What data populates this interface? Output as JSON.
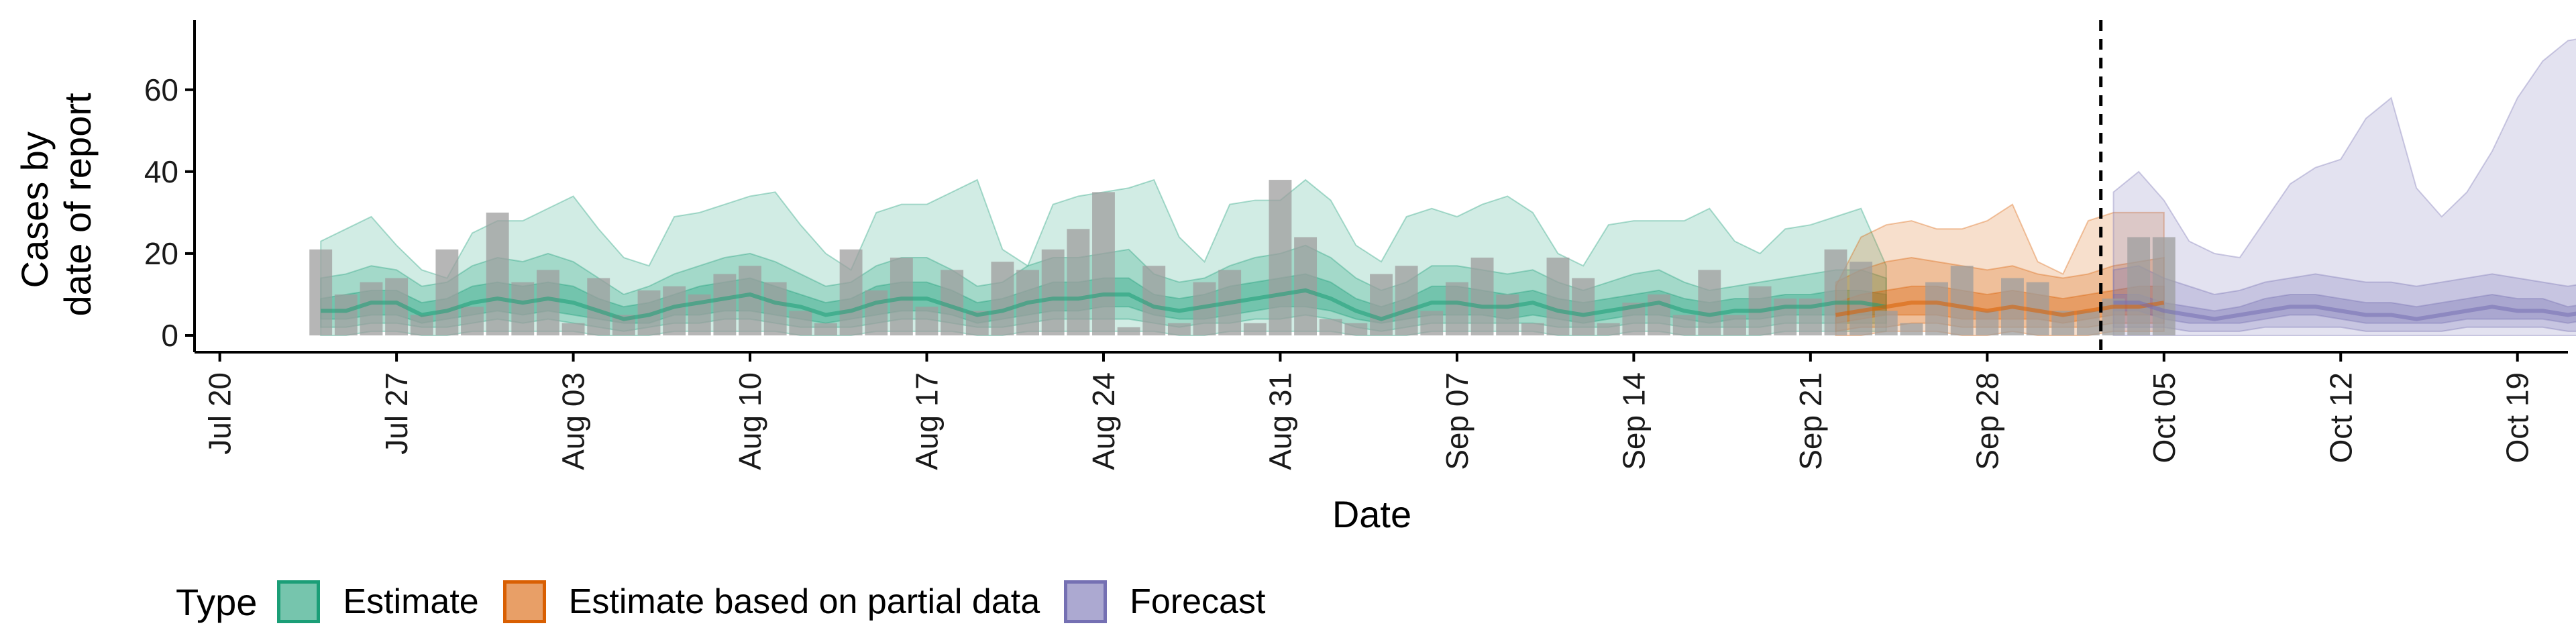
{
  "colors": {
    "estimate": "#1b9e77",
    "estimate_partial": "#d95f02",
    "forecast": "#7570b3",
    "bars": "#9e9e9e",
    "axis": "#000000"
  },
  "legend": {
    "title": "Type",
    "items": [
      {
        "label": "Estimate",
        "color": "#1b9e77"
      },
      {
        "label": "Estimate based on partial data",
        "color": "#d95f02"
      },
      {
        "label": "Forecast",
        "color": "#7570b3"
      }
    ]
  },
  "chart_data": {
    "type": "bar",
    "title": "",
    "xlabel": "Date",
    "ylabel": "Cases by\ndate of report",
    "x_range": [
      "2020-07-19",
      "2020-10-21"
    ],
    "ylim": [
      0,
      77
    ],
    "y_ticks": [
      0,
      20,
      40,
      60
    ],
    "x_ticks": [
      {
        "date": "2020-07-20",
        "label": "Jul 20"
      },
      {
        "date": "2020-07-27",
        "label": "Jul 27"
      },
      {
        "date": "2020-08-03",
        "label": "Aug 03"
      },
      {
        "date": "2020-08-10",
        "label": "Aug 10"
      },
      {
        "date": "2020-08-17",
        "label": "Aug 17"
      },
      {
        "date": "2020-08-24",
        "label": "Aug 24"
      },
      {
        "date": "2020-08-31",
        "label": "Aug 31"
      },
      {
        "date": "2020-09-07",
        "label": "Sep 07"
      },
      {
        "date": "2020-09-14",
        "label": "Sep 14"
      },
      {
        "date": "2020-09-21",
        "label": "Sep 21"
      },
      {
        "date": "2020-09-28",
        "label": "Sep 28"
      },
      {
        "date": "2020-10-05",
        "label": "Oct 05"
      },
      {
        "date": "2020-10-12",
        "label": "Oct 12"
      },
      {
        "date": "2020-10-19",
        "label": "Oct 19"
      }
    ],
    "forecast_start_marker": "2020-10-02",
    "grid": false,
    "legend_position": "bottom",
    "reported_cases": {
      "start_date": "2020-07-24",
      "values": [
        21,
        10,
        13,
        14,
        5,
        21,
        7,
        30,
        13,
        16,
        3,
        14,
        5,
        11,
        12,
        10,
        15,
        17,
        13,
        6,
        3,
        21,
        11,
        19,
        7,
        16,
        6,
        18,
        16,
        21,
        26,
        35,
        2,
        17,
        3,
        13,
        16,
        3,
        38,
        24,
        4,
        3,
        15,
        17,
        6,
        13,
        19,
        10,
        3,
        19,
        14,
        3,
        8,
        10,
        5,
        16,
        5,
        12,
        9,
        9,
        21,
        18,
        6,
        3,
        13,
        17,
        6,
        14,
        13,
        6,
        6,
        9,
        24,
        24
      ]
    },
    "series": [
      {
        "name": "Estimate",
        "start_date": "2020-07-24",
        "median": [
          6,
          6,
          8,
          8,
          5,
          6,
          8,
          9,
          8,
          9,
          8,
          6,
          4,
          5,
          7,
          8,
          9,
          10,
          8,
          7,
          5,
          6,
          8,
          9,
          9,
          7,
          5,
          6,
          8,
          9,
          9,
          10,
          10,
          7,
          6,
          7,
          8,
          9,
          10,
          11,
          9,
          6,
          4,
          6,
          8,
          8,
          7,
          7,
          8,
          6,
          5,
          6,
          7,
          8,
          6,
          5,
          6,
          6,
          7,
          7,
          8,
          8,
          7
        ],
        "inner_low": [
          4,
          4,
          5,
          5,
          3,
          4,
          5,
          6,
          5,
          6,
          5,
          4,
          3,
          3,
          5,
          5,
          6,
          6,
          5,
          4,
          3,
          4,
          5,
          6,
          6,
          5,
          3,
          4,
          5,
          6,
          6,
          7,
          7,
          5,
          4,
          4,
          5,
          6,
          7,
          7,
          6,
          4,
          3,
          4,
          5,
          5,
          5,
          4,
          5,
          4,
          3,
          4,
          5,
          5,
          4,
          3,
          4,
          4,
          5,
          5,
          5,
          5,
          5
        ],
        "inner_high": [
          9,
          10,
          11,
          11,
          8,
          9,
          12,
          13,
          12,
          13,
          12,
          9,
          7,
          8,
          10,
          12,
          13,
          14,
          12,
          10,
          8,
          9,
          12,
          13,
          13,
          11,
          8,
          9,
          11,
          13,
          13,
          14,
          14,
          10,
          9,
          10,
          12,
          13,
          14,
          15,
          13,
          9,
          7,
          9,
          12,
          12,
          11,
          10,
          11,
          9,
          8,
          9,
          10,
          11,
          9,
          8,
          9,
          9,
          10,
          10,
          11,
          11,
          10
        ],
        "mid_low": [
          2,
          2,
          3,
          3,
          2,
          2,
          3,
          4,
          3,
          4,
          3,
          2,
          1,
          2,
          3,
          3,
          4,
          4,
          3,
          2,
          2,
          2,
          3,
          4,
          4,
          3,
          2,
          2,
          3,
          4,
          4,
          4,
          4,
          3,
          2,
          3,
          3,
          4,
          4,
          5,
          4,
          2,
          1,
          2,
          3,
          3,
          3,
          3,
          3,
          2,
          2,
          2,
          3,
          3,
          2,
          2,
          2,
          2,
          3,
          3,
          3,
          3,
          3
        ],
        "mid_high": [
          14,
          15,
          17,
          16,
          12,
          13,
          17,
          19,
          18,
          20,
          18,
          14,
          10,
          12,
          15,
          17,
          19,
          20,
          18,
          15,
          12,
          13,
          17,
          19,
          19,
          16,
          12,
          13,
          17,
          19,
          19,
          20,
          21,
          15,
          13,
          14,
          17,
          19,
          20,
          22,
          19,
          14,
          11,
          13,
          17,
          17,
          16,
          15,
          16,
          13,
          11,
          13,
          15,
          16,
          13,
          11,
          12,
          13,
          14,
          15,
          16,
          16,
          14
        ],
        "outer_low": [
          0,
          0,
          1,
          1,
          0,
          0,
          1,
          1,
          1,
          1,
          1,
          0,
          0,
          0,
          1,
          1,
          1,
          1,
          1,
          0,
          0,
          0,
          1,
          1,
          1,
          1,
          0,
          0,
          1,
          1,
          1,
          1,
          1,
          1,
          0,
          0,
          1,
          1,
          1,
          1,
          1,
          0,
          0,
          0,
          1,
          1,
          1,
          1,
          1,
          0,
          0,
          0,
          1,
          1,
          0,
          0,
          0,
          0,
          1,
          1,
          1,
          1,
          1
        ],
        "outer_high": [
          23,
          26,
          29,
          22,
          16,
          14,
          25,
          28,
          28,
          31,
          34,
          26,
          19,
          17,
          29,
          30,
          32,
          34,
          35,
          27,
          20,
          16,
          30,
          32,
          32,
          35,
          38,
          21,
          17,
          32,
          34,
          35,
          36,
          38,
          24,
          18,
          32,
          33,
          33,
          38,
          33,
          22,
          18,
          29,
          31,
          29,
          32,
          34,
          30,
          20,
          17,
          27,
          28,
          28,
          28,
          31,
          23,
          20,
          26,
          27,
          29,
          31,
          17
        ]
      },
      {
        "name": "Estimate based on partial data",
        "start_date": "2020-09-22",
        "median": [
          5,
          6,
          7,
          8,
          8,
          7,
          6,
          7,
          6,
          5,
          6,
          7,
          7,
          8
        ],
        "inner_low": [
          3,
          4,
          5,
          5,
          5,
          4,
          4,
          4,
          4,
          3,
          4,
          5,
          5,
          5
        ],
        "inner_high": [
          8,
          10,
          11,
          12,
          12,
          11,
          10,
          11,
          10,
          9,
          10,
          11,
          12,
          12
        ],
        "mid_low": [
          1,
          2,
          2,
          3,
          3,
          2,
          2,
          2,
          2,
          2,
          2,
          3,
          3,
          3
        ],
        "mid_high": [
          13,
          16,
          18,
          19,
          18,
          17,
          16,
          17,
          15,
          14,
          15,
          17,
          18,
          19
        ],
        "outer_low": [
          0,
          0,
          1,
          1,
          1,
          0,
          0,
          1,
          0,
          0,
          0,
          1,
          1,
          1
        ],
        "outer_high": [
          12,
          24,
          27,
          28,
          26,
          26,
          28,
          32,
          18,
          15,
          28,
          30,
          30,
          30
        ]
      },
      {
        "name": "Forecast",
        "start_date": "2020-10-03",
        "median": [
          8,
          8,
          6,
          5,
          4,
          5,
          6,
          7,
          7,
          6,
          5,
          5,
          4,
          5,
          6,
          7,
          6,
          6,
          5,
          6,
          7,
          7,
          6,
          6,
          6
        ],
        "inner_low": [
          6,
          6,
          4,
          3,
          3,
          3,
          4,
          5,
          5,
          4,
          3,
          3,
          3,
          3,
          4,
          4,
          4,
          4,
          3,
          4,
          4,
          4,
          4,
          4,
          4
        ],
        "inner_high": [
          10,
          10,
          8,
          7,
          6,
          7,
          9,
          10,
          10,
          9,
          8,
          8,
          7,
          8,
          9,
          10,
          9,
          9,
          7,
          8,
          9,
          10,
          9,
          9,
          9
        ],
        "mid_low": [
          2,
          2,
          2,
          1,
          1,
          1,
          2,
          2,
          2,
          2,
          1,
          1,
          1,
          1,
          2,
          2,
          2,
          2,
          1,
          1,
          2,
          2,
          2,
          2,
          2
        ],
        "mid_high": [
          16,
          17,
          14,
          12,
          10,
          11,
          13,
          14,
          15,
          14,
          13,
          13,
          12,
          13,
          14,
          15,
          14,
          13,
          12,
          13,
          14,
          15,
          16,
          17,
          16
        ],
        "outer_low": [
          0,
          0,
          0,
          0,
          0,
          0,
          0,
          0,
          0,
          0,
          0,
          0,
          0,
          0,
          0,
          0,
          0,
          0,
          0,
          0,
          0,
          0,
          0,
          0,
          0
        ],
        "outer_high": [
          35,
          40,
          33,
          23,
          20,
          19,
          28,
          37,
          41,
          43,
          53,
          58,
          36,
          29,
          35,
          45,
          58,
          67,
          72,
          73,
          73,
          73,
          73,
          73,
          73
        ]
      }
    ]
  }
}
